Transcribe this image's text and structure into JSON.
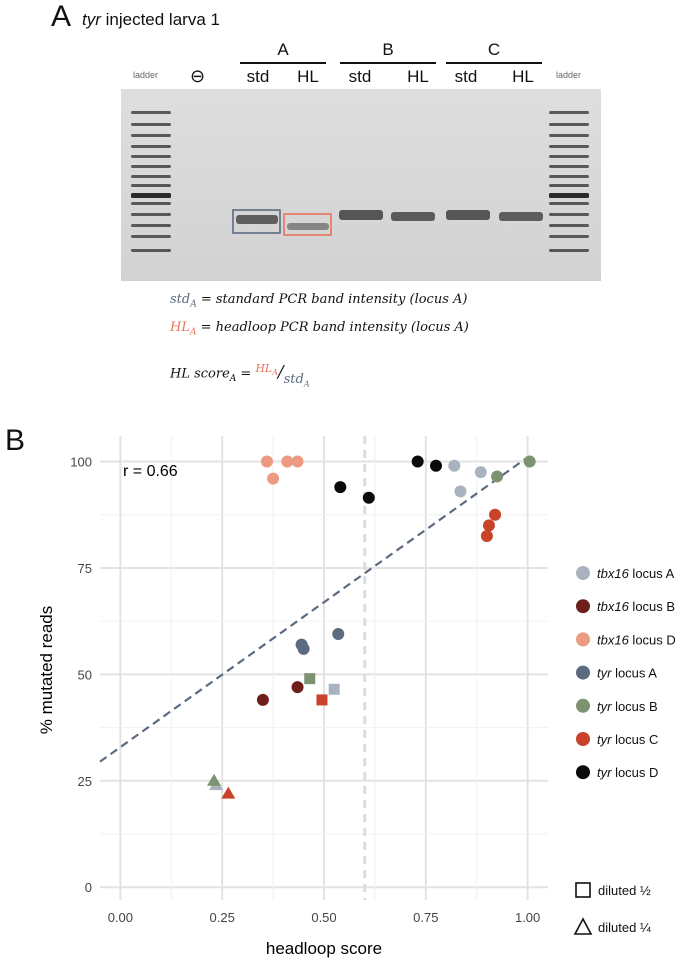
{
  "panel_a": {
    "letter": "A",
    "title_italic": "tyr",
    "title_rest": " injected larva 1",
    "ladder_left": "ladder",
    "ladder_right": "ladder",
    "negative_symbol": "⊖",
    "groups": [
      {
        "label": "A",
        "lanes": [
          "std",
          "HL"
        ]
      },
      {
        "label": "B",
        "lanes": [
          "std",
          "HL"
        ]
      },
      {
        "label": "C",
        "lanes": [
          "std",
          "HL"
        ]
      }
    ],
    "colors": {
      "std": "#5b6b80",
      "hl": "#e8735f"
    },
    "equations": {
      "std_sym": "std",
      "std_sub": "A",
      "std_text": " = standard PCR band intensity (locus A)",
      "hl_sym": "HL",
      "hl_sub": "A",
      "hl_text": " = headloop PCR band intensity (locus A)",
      "score_sym": "HL score",
      "score_sub": "A",
      "score_eq": " = ",
      "score_num": "HL",
      "score_num_sub": "A",
      "score_slash": "/",
      "score_den": "std",
      "score_den_sub": "A"
    }
  },
  "panel_b": {
    "letter": "B",
    "r_label": "r = 0.66"
  },
  "chart_data": {
    "type": "scatter",
    "xlabel": "headloop score",
    "ylabel": "% mutated reads",
    "xlim": [
      -0.05,
      1.05
    ],
    "ylim": [
      -3,
      106
    ],
    "x_ticks": [
      0,
      0.25,
      0.5,
      0.75,
      1.0
    ],
    "x_tick_labels": [
      "0.00",
      "0.25",
      "0.50",
      "0.75",
      "1.00"
    ],
    "y_ticks": [
      0,
      25,
      50,
      75,
      100
    ],
    "y_tick_labels": [
      "0",
      "25",
      "50",
      "75",
      "100"
    ],
    "grid": true,
    "threshold_x": 0.6,
    "regression": {
      "x0": -0.05,
      "y0": 29.5,
      "x1": 1.0,
      "y1": 101
    },
    "legend_position": "right",
    "series": [
      {
        "name_italic": "tbx16",
        "name_rest": " locus A",
        "color": "#a9b3bf",
        "points": [
          {
            "x": 0.82,
            "y": 99,
            "shape": "circle"
          },
          {
            "x": 0.835,
            "y": 93,
            "shape": "circle"
          },
          {
            "x": 0.885,
            "y": 97.5,
            "shape": "circle"
          },
          {
            "x": 0.525,
            "y": 46.5,
            "shape": "square"
          },
          {
            "x": 0.235,
            "y": 24,
            "shape": "triangle"
          }
        ]
      },
      {
        "name_italic": "tbx16",
        "name_rest": " locus B",
        "color": "#6e1f1a",
        "points": [
          {
            "x": 0.35,
            "y": 44,
            "shape": "circle"
          },
          {
            "x": 0.435,
            "y": 47,
            "shape": "circle"
          }
        ]
      },
      {
        "name_italic": "tbx16",
        "name_rest": " locus D",
        "color": "#ec9a82",
        "points": [
          {
            "x": 0.36,
            "y": 100,
            "shape": "circle"
          },
          {
            "x": 0.41,
            "y": 100,
            "shape": "circle"
          },
          {
            "x": 0.435,
            "y": 100,
            "shape": "circle"
          },
          {
            "x": 0.375,
            "y": 96,
            "shape": "circle"
          }
        ]
      },
      {
        "name_italic": "tyr",
        "name_rest": " locus A",
        "color": "#5b6b80",
        "points": [
          {
            "x": 0.445,
            "y": 57,
            "shape": "circle"
          },
          {
            "x": 0.45,
            "y": 56,
            "shape": "circle"
          },
          {
            "x": 0.535,
            "y": 59.5,
            "shape": "circle"
          }
        ]
      },
      {
        "name_italic": "tyr",
        "name_rest": " locus B",
        "color": "#7d9270",
        "points": [
          {
            "x": 1.005,
            "y": 100,
            "shape": "circle"
          },
          {
            "x": 0.925,
            "y": 96.5,
            "shape": "circle"
          },
          {
            "x": 0.465,
            "y": 49,
            "shape": "square"
          },
          {
            "x": 0.23,
            "y": 25,
            "shape": "triangle"
          }
        ]
      },
      {
        "name_italic": "tyr",
        "name_rest": " locus C",
        "color": "#c8432a",
        "points": [
          {
            "x": 0.92,
            "y": 87.5,
            "shape": "circle"
          },
          {
            "x": 0.905,
            "y": 85,
            "shape": "circle"
          },
          {
            "x": 0.9,
            "y": 82.5,
            "shape": "circle"
          },
          {
            "x": 0.495,
            "y": 44,
            "shape": "square"
          },
          {
            "x": 0.265,
            "y": 22,
            "shape": "triangle"
          }
        ]
      },
      {
        "name_italic": "tyr",
        "name_rest": " locus D",
        "color": "#0a0a0a",
        "points": [
          {
            "x": 0.73,
            "y": 100,
            "shape": "circle"
          },
          {
            "x": 0.775,
            "y": 99,
            "shape": "circle"
          },
          {
            "x": 0.54,
            "y": 94,
            "shape": "circle"
          },
          {
            "x": 0.61,
            "y": 91.5,
            "shape": "circle"
          }
        ]
      }
    ],
    "shape_legend": [
      {
        "shape": "square",
        "label": "diluted ½"
      },
      {
        "shape": "triangle",
        "label": "diluted ¼"
      }
    ]
  }
}
